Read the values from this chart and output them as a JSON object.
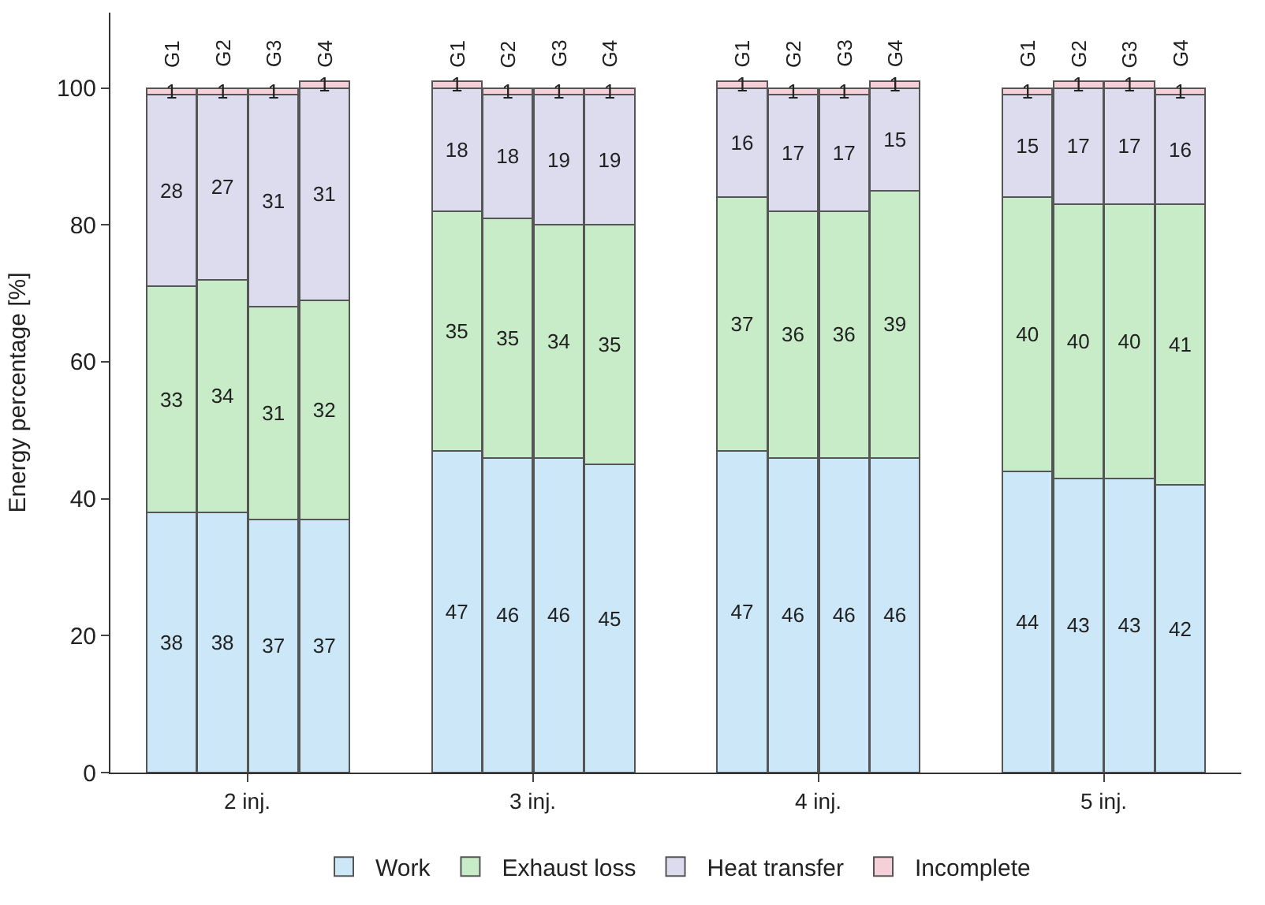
{
  "chart_data": {
    "type": "bar",
    "stacked": true,
    "data_labels": true,
    "ylabel": "Energy percentage [%]",
    "categories": [
      "G1",
      "G2",
      "G3",
      "G4",
      "G1",
      "G2",
      "G3",
      "G4",
      "G1",
      "G2",
      "G3",
      "G4",
      "G1",
      "G2",
      "G3",
      "G4"
    ],
    "annotations": [
      "2 inj.",
      "3 inj.",
      "4 inj.",
      "5 inj."
    ],
    "series": [
      {
        "name": "Work",
        "color": "#cce8f8",
        "values": [
          38,
          38,
          37,
          37,
          47,
          46,
          46,
          45,
          47,
          46,
          46,
          46,
          44,
          43,
          43,
          42
        ]
      },
      {
        "name": "Exhaust loss",
        "color": "#c8ecc8",
        "values": [
          33,
          34,
          31,
          32,
          35,
          35,
          34,
          35,
          37,
          36,
          36,
          39,
          40,
          40,
          40,
          41
        ]
      },
      {
        "name": "Heat transfer",
        "color": "#dcdcee",
        "values": [
          28,
          27,
          31,
          31,
          18,
          18,
          19,
          19,
          16,
          17,
          17,
          15,
          15,
          17,
          17,
          16
        ]
      },
      {
        "name": "Incomplete",
        "color": "#f6d0d8",
        "values": [
          1,
          1,
          1,
          1,
          1,
          1,
          1,
          1,
          1,
          1,
          1,
          1,
          1,
          1,
          1,
          1
        ]
      }
    ],
    "ylim": [
      0,
      111
    ],
    "yticks": [
      0,
      20,
      40,
      60,
      80,
      100
    ],
    "legend": "bottom"
  }
}
